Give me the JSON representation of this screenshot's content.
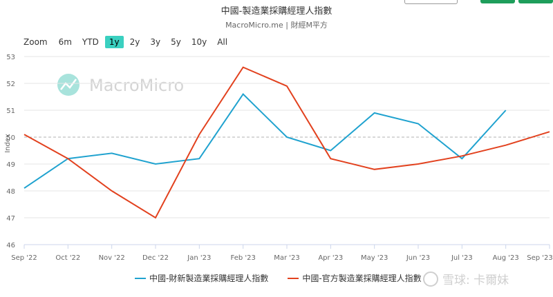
{
  "header": {
    "title": "中國-製造業採購經理人指數",
    "subtitle": "MacroMicro.me | 財經M平方"
  },
  "zoom": {
    "label": "Zoom",
    "options": [
      "6m",
      "YTD",
      "1y",
      "2y",
      "3y",
      "5y",
      "10y",
      "All"
    ],
    "selected": "1y"
  },
  "watermark": {
    "logo_text": "MacroMicro",
    "bottom_text": "雪球: 卡爾妹"
  },
  "chart_data": {
    "type": "line",
    "title": "中國-製造業採購經理人指數",
    "subtitle": "MacroMicro.me | 財經M平方",
    "ylabel": "Index",
    "xlabel": "",
    "categories": [
      "Sep '22",
      "Oct '22",
      "Nov '22",
      "Dec '22",
      "Jan '23",
      "Feb '23",
      "Mar '23",
      "Apr '23",
      "May '23",
      "Jun '23",
      "Jul '23",
      "Aug '23",
      "Sep '23"
    ],
    "ylim": [
      46,
      53
    ],
    "yticks": [
      "46",
      "47",
      "48",
      "49",
      "50",
      "51",
      "52",
      "53"
    ],
    "reference_line": 50,
    "grid": true,
    "legend_position": "bottom",
    "series": [
      {
        "name": "中國-財新製造業採購經理人指數",
        "color": "#1fa2cf",
        "values": [
          48.1,
          49.2,
          49.4,
          49.0,
          49.2,
          51.6,
          50.0,
          49.5,
          50.9,
          50.5,
          49.2,
          51.0,
          null
        ]
      },
      {
        "name": "中國-官方製造業採購經理人指數",
        "color": "#e2411e",
        "values": [
          50.1,
          49.2,
          48.0,
          47.0,
          50.1,
          52.6,
          51.9,
          49.2,
          48.8,
          49.0,
          49.3,
          49.7,
          50.2
        ]
      }
    ]
  }
}
